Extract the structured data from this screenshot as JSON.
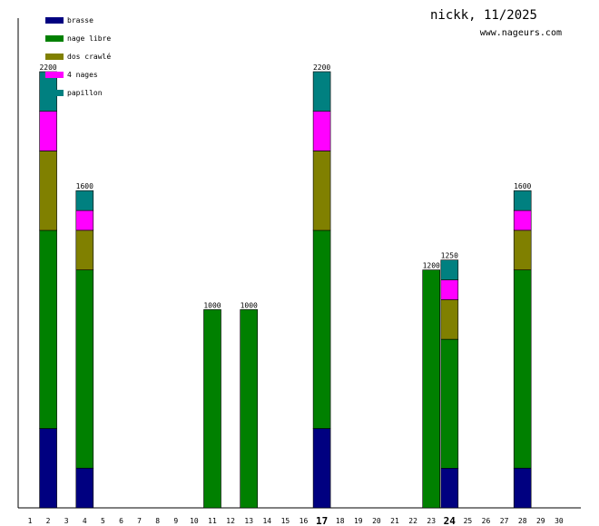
{
  "header": {
    "title": "nickk, 11/2025",
    "site": "www.nageurs.com"
  },
  "chart_data": {
    "type": "bar",
    "stacked": true,
    "xlabel": "",
    "ylabel": "",
    "ylim": [
      0,
      2200
    ],
    "grid": false,
    "legend_position": "top-left",
    "highlighted_days": [
      17,
      24
    ],
    "categories": [
      1,
      2,
      3,
      4,
      5,
      6,
      7,
      8,
      9,
      10,
      11,
      12,
      13,
      14,
      15,
      16,
      17,
      18,
      19,
      20,
      21,
      22,
      23,
      24,
      25,
      26,
      27,
      28,
      29,
      30
    ],
    "series": [
      {
        "name": "brasse",
        "color": "#000080",
        "values": [
          0,
          400,
          0,
          200,
          0,
          0,
          0,
          0,
          0,
          0,
          0,
          0,
          0,
          0,
          0,
          0,
          400,
          0,
          0,
          0,
          0,
          0,
          0,
          200,
          0,
          0,
          0,
          200,
          0,
          0
        ]
      },
      {
        "name": "nage libre",
        "color": "#008000",
        "values": [
          0,
          1000,
          0,
          1000,
          0,
          0,
          0,
          0,
          0,
          0,
          1000,
          0,
          1000,
          0,
          0,
          0,
          1000,
          0,
          0,
          0,
          0,
          0,
          1200,
          650,
          0,
          0,
          0,
          1000,
          0,
          0
        ]
      },
      {
        "name": "dos crawlé",
        "color": "#808000",
        "values": [
          0,
          400,
          0,
          200,
          0,
          0,
          0,
          0,
          0,
          0,
          0,
          0,
          0,
          0,
          0,
          0,
          400,
          0,
          0,
          0,
          0,
          0,
          0,
          200,
          0,
          0,
          0,
          200,
          0,
          0
        ]
      },
      {
        "name": "4 nages",
        "color": "#ff00ff",
        "values": [
          0,
          200,
          0,
          100,
          0,
          0,
          0,
          0,
          0,
          0,
          0,
          0,
          0,
          0,
          0,
          0,
          200,
          0,
          0,
          0,
          0,
          0,
          0,
          100,
          0,
          0,
          0,
          100,
          0,
          0
        ]
      },
      {
        "name": "papillon",
        "color": "#008080",
        "values": [
          0,
          200,
          0,
          100,
          0,
          0,
          0,
          0,
          0,
          0,
          0,
          0,
          0,
          0,
          0,
          0,
          200,
          0,
          0,
          0,
          0,
          0,
          0,
          100,
          0,
          0,
          0,
          100,
          0,
          0
        ]
      }
    ],
    "totals": [
      null,
      2200,
      null,
      1600,
      null,
      null,
      null,
      null,
      null,
      null,
      1000,
      null,
      1000,
      null,
      null,
      null,
      2200,
      null,
      null,
      null,
      null,
      null,
      1200,
      1250,
      null,
      null,
      null,
      1600,
      null,
      null
    ]
  }
}
